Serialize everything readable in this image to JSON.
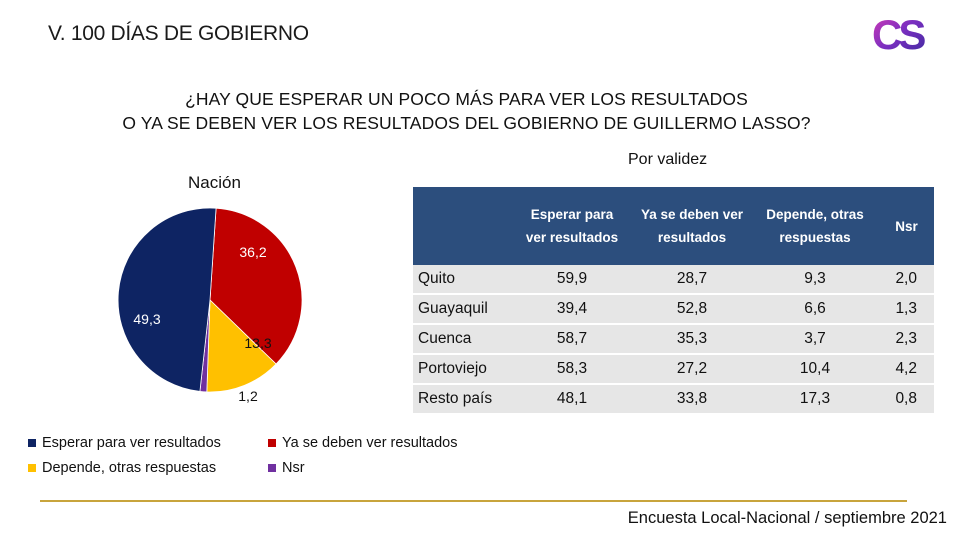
{
  "header": {
    "title": "V. 100 DÍAS DE GOBIERNO",
    "logo_text": "CS"
  },
  "question": {
    "line1": "¿HAY QUE ESPERAR UN POCO MÁS PARA VER LOS RESULTADOS",
    "line2": "O YA SE DEBEN VER LOS RESULTADOS DEL GOBIERNO DE GUILLERMO LASSO?"
  },
  "colors": {
    "navy": "#0e2463",
    "red": "#c00000",
    "yellow": "#ffc000",
    "purple": "#7030a0",
    "table_header": "#2c4e7d",
    "table_row": "#e6e6e6",
    "rule": "#c8a43c"
  },
  "chart_data": [
    {
      "type": "pie",
      "title": "Nación",
      "slices": [
        {
          "label": "Ya se deben ver resultados",
          "value": 36.2,
          "display": "36,2",
          "color": "#c00000"
        },
        {
          "label": "Depende, otras respuestas",
          "value": 13.3,
          "display": "13,3",
          "color": "#ffc000"
        },
        {
          "label": "Nsr",
          "value": 1.2,
          "display": "1,2",
          "color": "#7030a0"
        },
        {
          "label": "Esperar para ver resultados",
          "value": 49.3,
          "display": "49,3",
          "color": "#0e2463"
        }
      ],
      "legend": [
        {
          "label": "Esperar para ver resultados",
          "color": "#0e2463"
        },
        {
          "label": "Ya se deben ver resultados",
          "color": "#c00000"
        },
        {
          "label": "Depende, otras respuestas",
          "color": "#ffc000"
        },
        {
          "label": "Nsr",
          "color": "#7030a0"
        }
      ]
    },
    {
      "type": "table",
      "title": "Por validez",
      "columns": [
        "",
        "Esperar para ver resultados",
        "Ya se deben ver resultados",
        "Depende, otras respuestas",
        "Nsr"
      ],
      "header_lines": [
        [
          "",
          ""
        ],
        [
          "Esperar para",
          "ver resultados"
        ],
        [
          "Ya se deben ver",
          "resultados"
        ],
        [
          "Depende, otras",
          "respuestas"
        ],
        [
          "Nsr",
          ""
        ]
      ],
      "rows": [
        [
          "Quito",
          "59,9",
          "28,7",
          "9,3",
          "2,0"
        ],
        [
          "Guayaquil",
          "39,4",
          "52,8",
          "6,6",
          "1,3"
        ],
        [
          "Cuenca",
          "58,7",
          "35,3",
          "3,7",
          "2,3"
        ],
        [
          "Portoviejo",
          "58,3",
          "27,2",
          "10,4",
          "4,2"
        ],
        [
          "Resto país",
          "48,1",
          "33,8",
          "17,3",
          "0,8"
        ]
      ]
    }
  ],
  "footer": {
    "source": "Encuesta Local-Nacional / septiembre 2021"
  }
}
